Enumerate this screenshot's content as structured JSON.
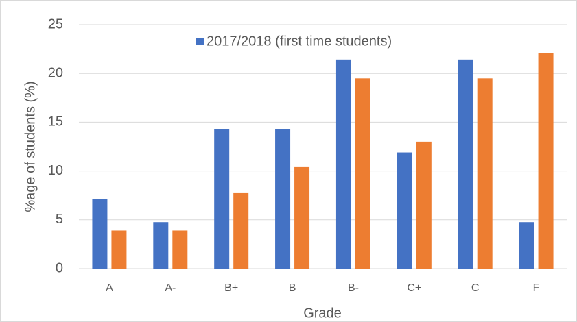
{
  "chart_data": {
    "type": "bar",
    "categories": [
      "A",
      "A-",
      "B+",
      "B",
      "B-",
      "C+",
      "C",
      "F"
    ],
    "series": [
      {
        "name": "2017/2018 (first time students)",
        "color": "#4472c4",
        "values": [
          7.14,
          4.76,
          14.29,
          14.29,
          21.43,
          11.9,
          21.43,
          4.76
        ]
      },
      {
        "color": "#ed7d31",
        "values": [
          3.9,
          3.9,
          7.8,
          10.4,
          19.5,
          13.0,
          19.5,
          22.1
        ]
      }
    ],
    "x_label": "Grade",
    "y_label": "%age of students (%)",
    "ylim": [
      0,
      25
    ],
    "yticks": [
      0,
      5,
      10,
      15,
      20,
      25
    ],
    "grid": true,
    "legend": "top"
  }
}
